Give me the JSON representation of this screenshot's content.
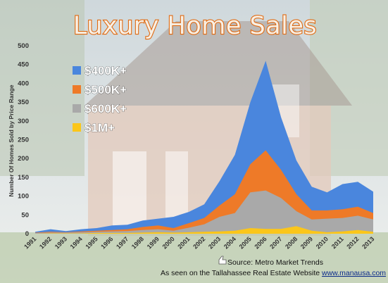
{
  "title": "Luxury Home Sales",
  "source_text": "Source: Metro Market Trends",
  "website_prefix": "As seen on the Tallahassee Real Estate Website ",
  "website_link": "www.manausa.com",
  "colors": {
    "s400": "#4a86dd",
    "s500": "#ee7a28",
    "s600": "#a9a9a9",
    "s1m": "#fbc61a",
    "title_fill": "#f7f0e6",
    "title_stroke": "#e06a12"
  },
  "chart_data": {
    "type": "area",
    "ylabel": "Number Of Homes Sold by Price Range",
    "xlabel": "",
    "ylim": [
      0,
      500
    ],
    "y_ticks": [
      0,
      50,
      100,
      150,
      200,
      250,
      300,
      350,
      400,
      450,
      500
    ],
    "grid": false,
    "legend_position": "top-left",
    "x": [
      "1991",
      "1992",
      "1993",
      "1994",
      "1995",
      "1996",
      "1997",
      "1998",
      "1999",
      "2000",
      "2001",
      "2002",
      "2003",
      "2004",
      "2005",
      "2006",
      "2007",
      "2008",
      "2009",
      "2010",
      "2011",
      "2012",
      "2013"
    ],
    "series": [
      {
        "name": "$400K+",
        "values": [
          5,
          12,
          7,
          12,
          15,
          22,
          24,
          35,
          40,
          45,
          58,
          78,
          140,
          210,
          350,
          460,
          310,
          195,
          125,
          110,
          132,
          138,
          112
        ]
      },
      {
        "name": "$500K+",
        "values": [
          3,
          5,
          4,
          6,
          8,
          10,
          12,
          18,
          22,
          15,
          28,
          42,
          75,
          105,
          185,
          222,
          170,
          105,
          62,
          62,
          65,
          72,
          55
        ]
      },
      {
        "name": "$600K+",
        "values": [
          2,
          3,
          3,
          4,
          5,
          6,
          7,
          10,
          12,
          8,
          16,
          25,
          45,
          55,
          110,
          115,
          95,
          60,
          38,
          40,
          42,
          48,
          38
        ]
      },
      {
        "name": "$1M+",
        "values": [
          0,
          1,
          1,
          1,
          2,
          2,
          2,
          3,
          4,
          3,
          4,
          5,
          6,
          8,
          15,
          13,
          13,
          20,
          8,
          4,
          6,
          10,
          5
        ]
      }
    ]
  }
}
